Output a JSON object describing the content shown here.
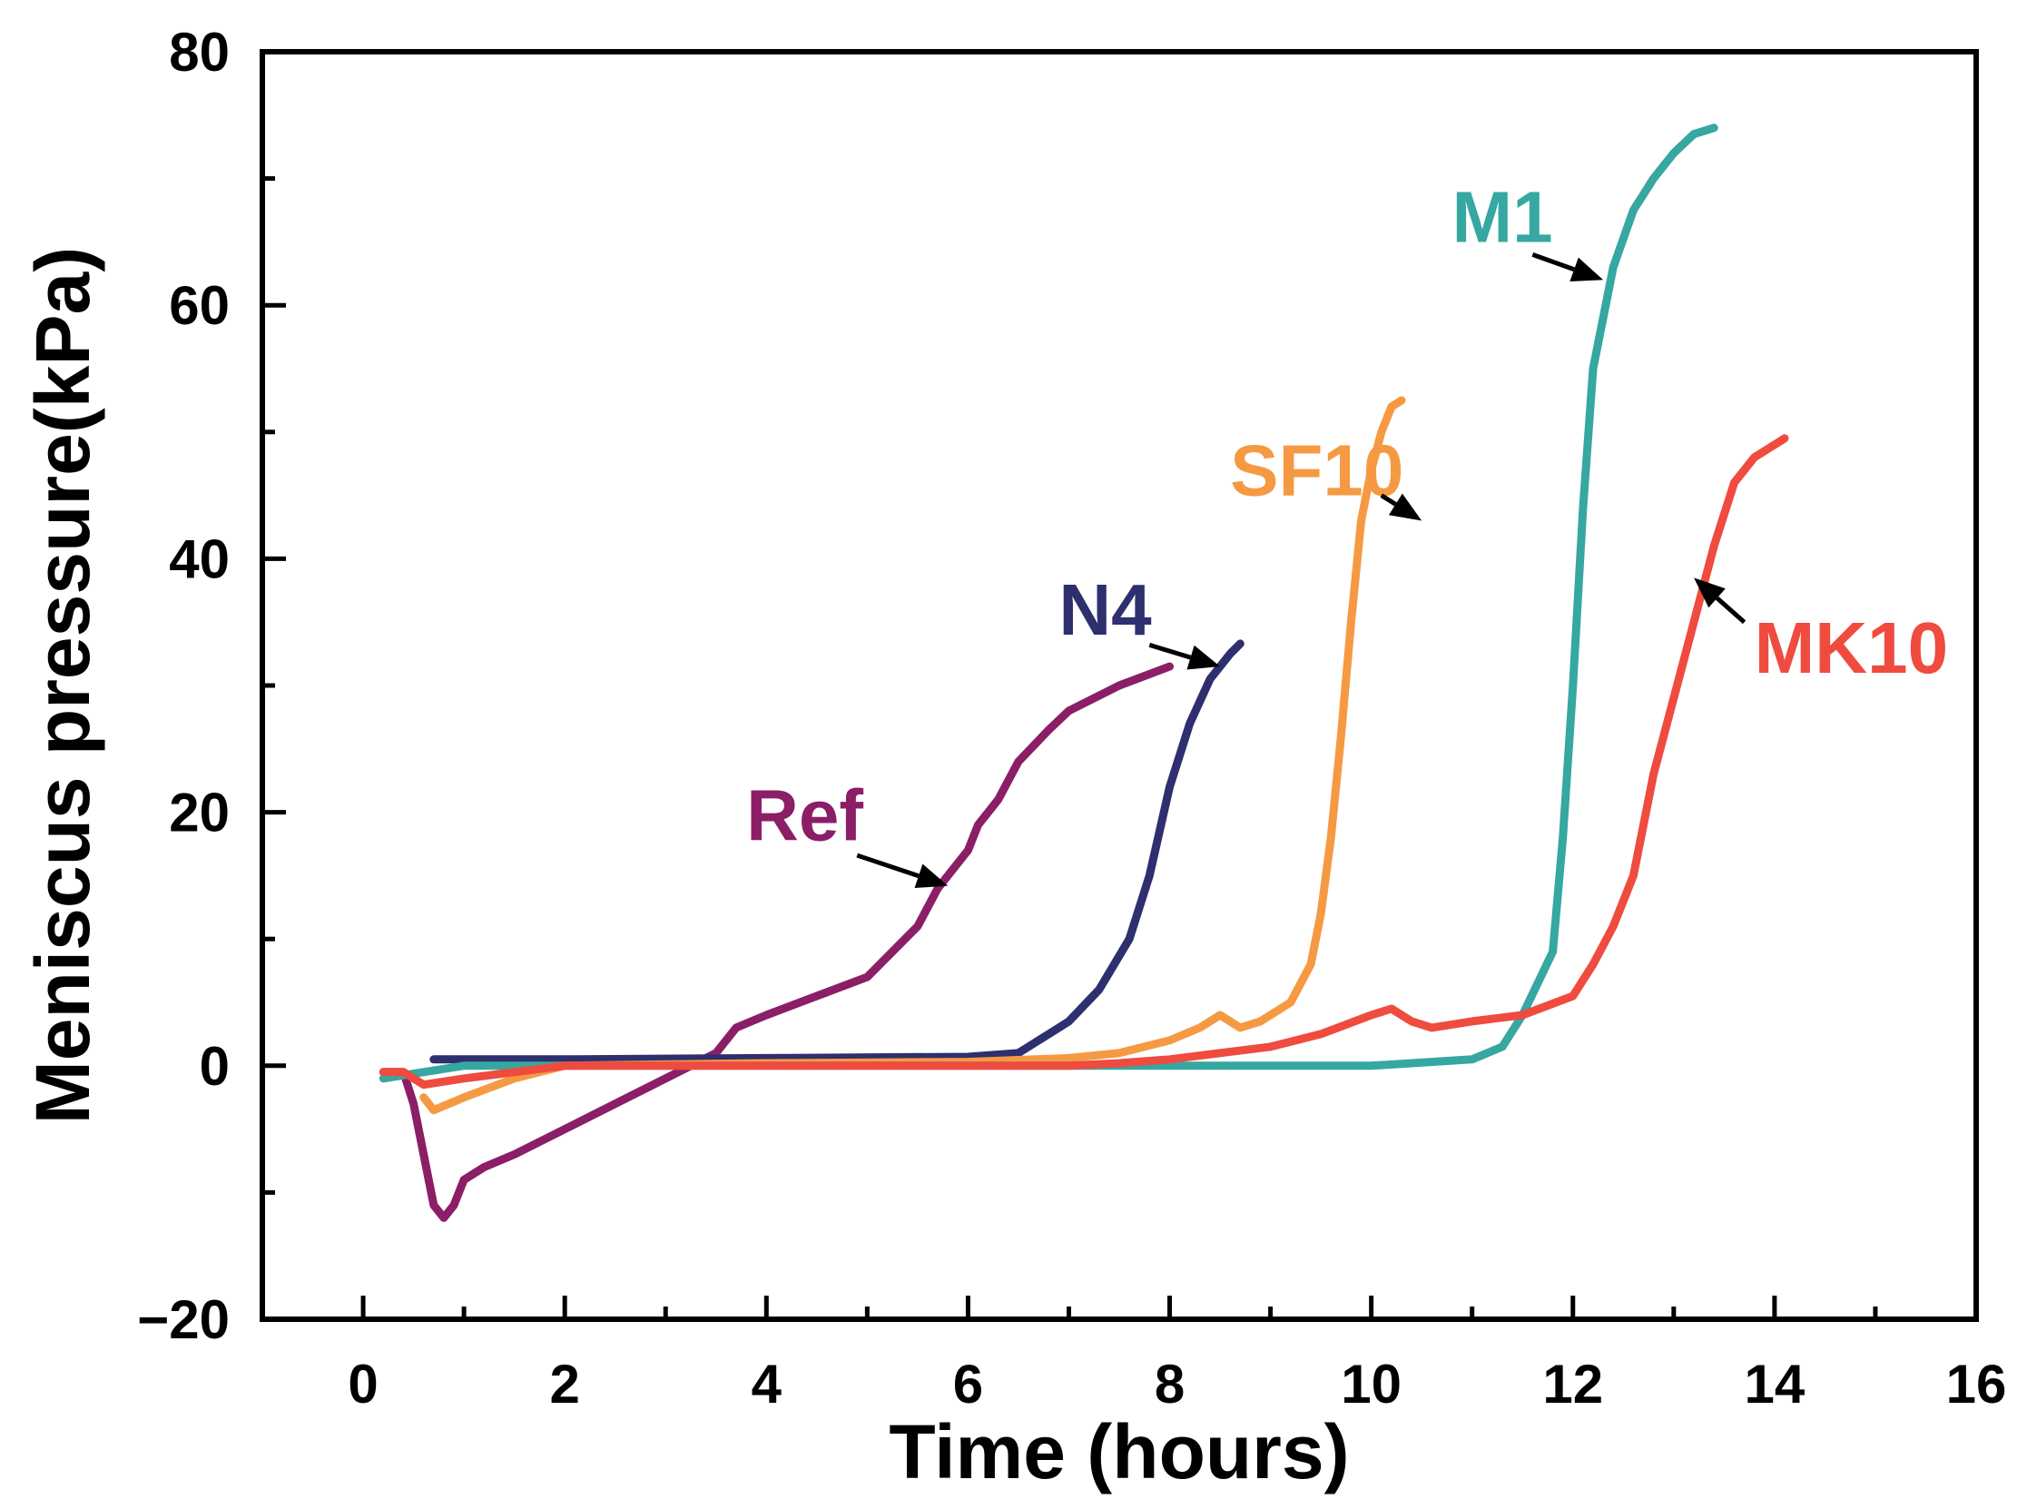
{
  "chart_data": {
    "type": "line",
    "title": "",
    "xlabel": "Time (hours)",
    "ylabel": "Meniscus pressure(kPa)",
    "xlim": [
      -1,
      16
    ],
    "ylim": [
      -20,
      80
    ],
    "x_ticks": [
      0,
      2,
      4,
      6,
      8,
      10,
      12,
      14,
      16
    ],
    "x_tick_labels": [
      "0",
      "2",
      "4",
      "6",
      "8",
      "10",
      "12",
      "14",
      "16"
    ],
    "y_ticks": [
      -20,
      0,
      20,
      40,
      60,
      80
    ],
    "y_tick_labels": [
      "−20",
      "0",
      "20",
      "40",
      "60",
      "80"
    ],
    "grid": false,
    "series": [
      {
        "name": "Ref",
        "color": "#8B1E67",
        "x": [
          0.2,
          0.4,
          0.5,
          0.6,
          0.7,
          0.8,
          0.9,
          1.0,
          1.2,
          1.5,
          2.0,
          2.5,
          3.0,
          3.5,
          3.7,
          4.0,
          4.5,
          5.0,
          5.5,
          5.7,
          6.0,
          6.1,
          6.3,
          6.5,
          6.8,
          7.0,
          7.5,
          8.0
        ],
        "y": [
          -0.5,
          -0.5,
          -3,
          -7,
          -11,
          -12,
          -11,
          -9,
          -8,
          -7,
          -5,
          -3,
          -1,
          1,
          3,
          4,
          5.5,
          7,
          11,
          14,
          17,
          19,
          21,
          24,
          26.5,
          28,
          30,
          31.5
        ]
      },
      {
        "name": "N4",
        "color": "#2E2F6E",
        "x": [
          0.7,
          2,
          4,
          6,
          6.5,
          6.8,
          7.0,
          7.3,
          7.6,
          7.8,
          8.0,
          8.2,
          8.4,
          8.6,
          8.7
        ],
        "y": [
          0.5,
          0.5,
          0.6,
          0.7,
          1,
          2.5,
          3.5,
          6,
          10,
          15,
          22,
          27,
          30.5,
          32.5,
          33.3
        ]
      },
      {
        "name": "SF10",
        "color": "#F59A43",
        "x": [
          0.6,
          0.7,
          1.0,
          1.5,
          2,
          4,
          6,
          7,
          7.5,
          8,
          8.3,
          8.5,
          8.7,
          8.9,
          9.2,
          9.4,
          9.5,
          9.6,
          9.7,
          9.8,
          9.9,
          10.0,
          10.1,
          10.2,
          10.3
        ],
        "y": [
          -2.5,
          -3.5,
          -2.5,
          -1,
          0,
          0.2,
          0.3,
          0.6,
          1,
          2,
          3,
          4,
          3,
          3.5,
          5,
          8,
          12,
          18,
          26,
          35,
          43,
          47,
          50,
          52,
          52.5
        ]
      },
      {
        "name": "M1",
        "color": "#36A7A1",
        "x": [
          0.2,
          1,
          3,
          6,
          8,
          10,
          11,
          11.3,
          11.5,
          11.8,
          11.9,
          12.0,
          12.1,
          12.2,
          12.4,
          12.6,
          12.8,
          13.0,
          13.2,
          13.4
        ],
        "y": [
          -1,
          0,
          0,
          0,
          0,
          0,
          0.5,
          1.5,
          4,
          9,
          18,
          30,
          44,
          55,
          63,
          67.5,
          70,
          72,
          73.5,
          74
        ]
      },
      {
        "name": "MK10",
        "color": "#EF4B3F",
        "x": [
          0.2,
          0.4,
          0.6,
          1,
          2,
          4,
          6,
          7,
          7.5,
          8,
          8.5,
          9,
          9.5,
          10,
          10.2,
          10.4,
          10.6,
          11,
          11.5,
          12,
          12.2,
          12.4,
          12.6,
          12.7,
          12.8,
          13.0,
          13.2,
          13.4,
          13.6,
          13.8,
          14.0,
          14.1
        ],
        "y": [
          -0.5,
          -0.5,
          -1.5,
          -1,
          0,
          0,
          0,
          0,
          0.2,
          0.5,
          1,
          1.5,
          2.5,
          4,
          4.5,
          3.5,
          3,
          3.5,
          4,
          5.5,
          8,
          11,
          15,
          19,
          23,
          29,
          35,
          41,
          46,
          48,
          49,
          49.5
        ]
      }
    ],
    "annotations": [
      {
        "text": "Ref",
        "color": "#8B1E67",
        "label_x": 3.8,
        "label_y": 17.8,
        "tail_x": 4.9,
        "tail_y": 16.6,
        "head_x": 5.8,
        "head_y": 14.2
      },
      {
        "text": "N4",
        "color": "#2E2F6E",
        "label_x": 6.9,
        "label_y": 34,
        "tail_x": 7.8,
        "tail_y": 33.2,
        "head_x": 8.5,
        "head_y": 31.5
      },
      {
        "text": "SF10",
        "color": "#F59A43",
        "label_x": 8.6,
        "label_y": 45,
        "tail_x": 10.1,
        "tail_y": 45,
        "head_x": 10.5,
        "head_y": 43
      },
      {
        "text": "M1",
        "color": "#36A7A1",
        "label_x": 10.8,
        "label_y": 65,
        "tail_x": 11.6,
        "tail_y": 64,
        "head_x": 12.3,
        "head_y": 62
      },
      {
        "text": "MK10",
        "color": "#EF4B3F",
        "label_x": 13.8,
        "label_y": 31,
        "tail_x": 13.7,
        "tail_y": 35,
        "head_x": 13.2,
        "head_y": 38.5
      }
    ]
  }
}
